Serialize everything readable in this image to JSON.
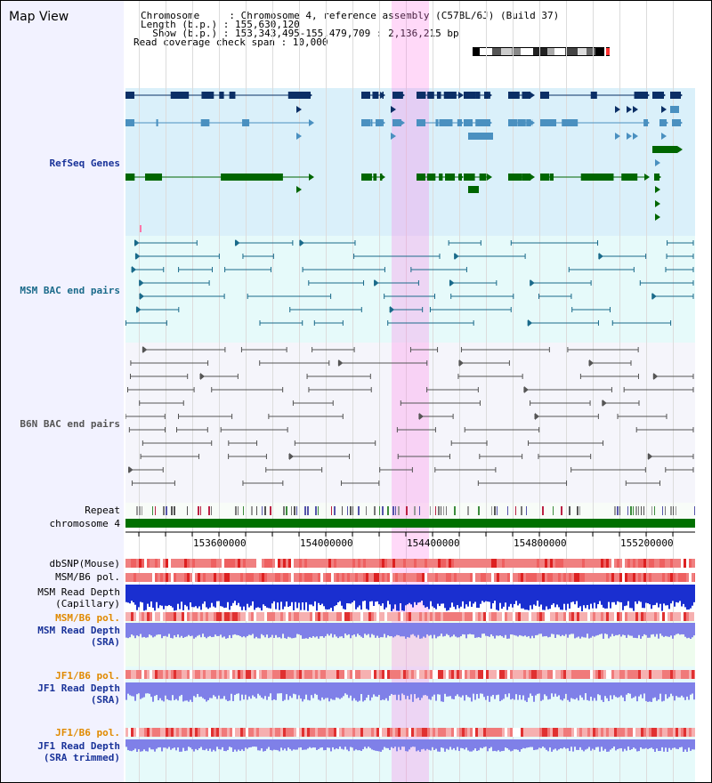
{
  "title": "Map View",
  "header": {
    "lines": [
      "Chromosome     : Chromosome 4, reference assembly (C57BL/6J) (Build 37)",
      "Length (b.p.) : 155,630,120",
      "  Show (b.p.) : 153,343,495-155,479,709 : 2,136,215 bp",
      "Read coverage check span : 10,000"
    ]
  },
  "tracks": {
    "refseq": "RefSeq Genes",
    "msm_bac": "MSM BAC end pairs",
    "b6n_bac": "B6N BAC end pairs",
    "repeat": "Repeat",
    "chromosome": "chromosome 4",
    "dbsnp": "dbSNP(Mouse)",
    "msm_pol_1": "MSM/B6 pol.",
    "msm_depth_cap_1": "MSM Read Depth",
    "msm_depth_cap_2": "(Capillary)",
    "msm_pol_2": "MSM/B6 pol.",
    "msm_depth_sra_1": "MSM Read Depth",
    "msm_depth_sra_2": "(SRA)",
    "jf1_pol_1": "JF1/B6 pol.",
    "jf1_depth_1": "JF1 Read Depth",
    "jf1_depth_2": "(SRA)",
    "jf1_pol_2": "JF1/B6 pol.",
    "jf1_trim_1": "JF1 Read Depth",
    "jf1_trim_2": "(SRA trimmed)"
  },
  "axis": {
    "ticks": [
      "153600000",
      "154000000",
      "154400000",
      "154800000",
      "155200000"
    ]
  },
  "colors": {
    "refseq_dark": "#0b2f66",
    "refseq_mid": "#4a90c0",
    "refseq_green": "#006600",
    "msm_bac": "#1a6a8a",
    "b6n_bac": "#555555",
    "chromosome": "#007000",
    "depth_cap": "#1a2fd0",
    "depth_sra": "#7f80e8",
    "highlight": "#ff78e6",
    "label_blue": "#1a3399",
    "label_orange": "#e08a00",
    "label_teal": "#1a6a8a"
  }
}
